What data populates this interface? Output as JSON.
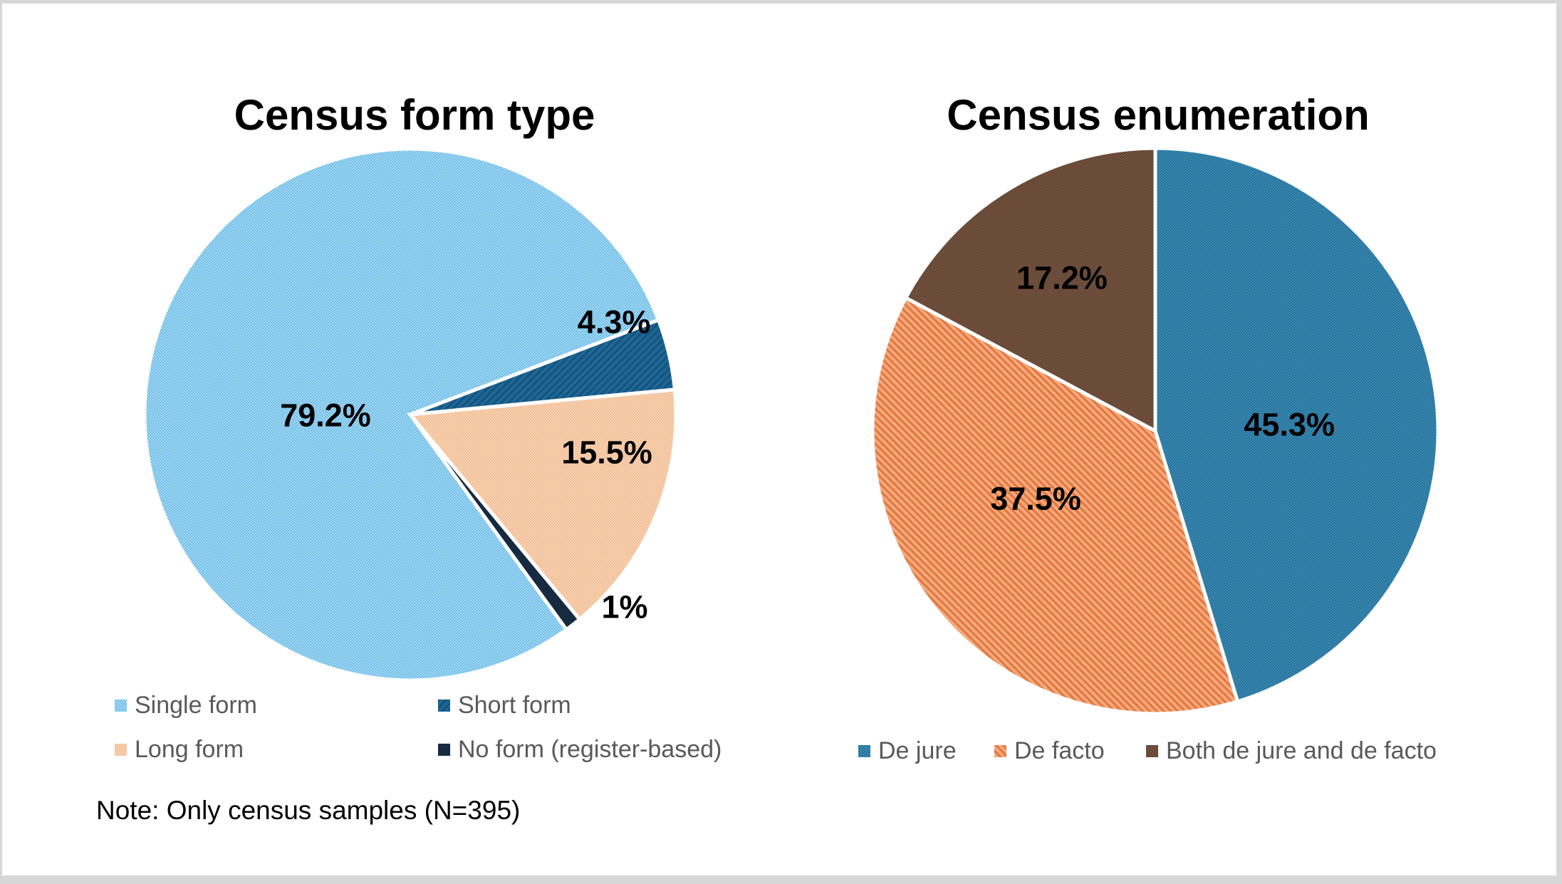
{
  "frame": {
    "color": "#D7D7D7"
  },
  "background": "#FFFFFF",
  "text_colors": {
    "legend": "#595959",
    "data_label": "#000000",
    "title": "#000000",
    "note": "#000000"
  },
  "note": "Note: Only census samples (N=395)",
  "chart_data": [
    {
      "type": "pie",
      "title": "Census form type",
      "start_angle_deg": 144,
      "direction": "clockwise",
      "legend_position": "bottom",
      "slices": [
        {
          "label": "Single form",
          "value": 79.2,
          "data_label": "79.2%",
          "fill": {
            "type": "checker",
            "bg": "#A9DAF3",
            "fg": "#6CBCE7"
          }
        },
        {
          "label": "Short form",
          "value": 4.3,
          "data_label": "4.3%",
          "fill": {
            "type": "hatch",
            "bg": "#1E6795",
            "fg": "#14537E",
            "angle": 45
          }
        },
        {
          "label": "Long form",
          "value": 15.5,
          "data_label": "15.5%",
          "fill": {
            "type": "checker",
            "bg": "#FAD4B5",
            "fg": "#F0BD95"
          }
        },
        {
          "label": "No form (register-based)",
          "value": 1.0,
          "data_label": "1%",
          "fill": {
            "type": "solid",
            "bg": "#182A40",
            "fg": "#182A40"
          }
        }
      ]
    },
    {
      "type": "pie",
      "title": "Census enumeration",
      "start_angle_deg": 0,
      "direction": "clockwise",
      "legend_position": "bottom",
      "slices": [
        {
          "label": "De jure",
          "value": 45.3,
          "data_label": "45.3%",
          "fill": {
            "type": "checker",
            "bg": "#3C8CB4",
            "fg": "#266F99"
          }
        },
        {
          "label": "De facto",
          "value": 37.5,
          "data_label": "37.5%",
          "fill": {
            "type": "hatch",
            "bg": "#F5A97C",
            "fg": "#E2773F",
            "angle": -45
          }
        },
        {
          "label": "Both de jure and de facto",
          "value": 17.2,
          "data_label": "17.2%",
          "fill": {
            "type": "checker",
            "bg": "#755440",
            "fg": "#614433"
          }
        }
      ]
    }
  ]
}
